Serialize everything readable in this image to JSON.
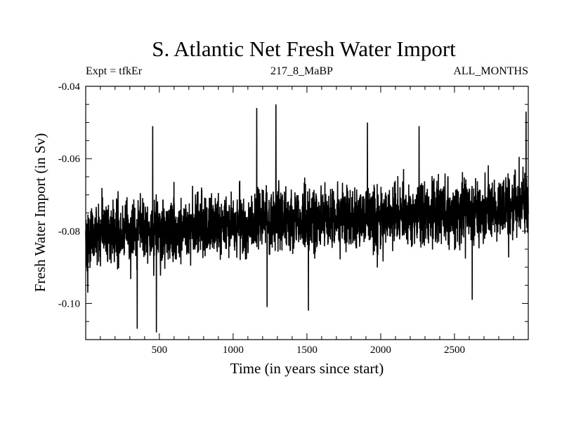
{
  "chart_data": {
    "type": "line",
    "title": "S. Atlantic Net Fresh Water Import",
    "subtitle_left": "Expt = tfkEr",
    "subtitle_center": "217_8_MaBP",
    "subtitle_right": "ALL_MONTHS",
    "xlabel": "Time (in years since start)",
    "ylabel": "Fresh Water Import (in Sv)",
    "xlim": [
      1,
      3000
    ],
    "ylim": [
      -0.11,
      -0.04
    ],
    "xticks": [
      500,
      1000,
      1500,
      2000,
      2500
    ],
    "yticks": [
      -0.1,
      -0.08,
      -0.06,
      -0.04
    ],
    "ytick_labels": [
      "-0.10",
      "-0.08",
      "-0.06",
      "-0.04"
    ],
    "grid": false,
    "series": [
      {
        "color": "#000000",
        "description": "annual values",
        "n_points": 3000,
        "trend_mean": {
          "x": [
            1,
            1000,
            2000,
            3000
          ],
          "y": [
            -0.081,
            -0.078,
            -0.076,
            -0.073
          ]
        },
        "typical_std": 0.0075,
        "extremes": [
          {
            "x": 15,
            "y": -0.097
          },
          {
            "x": 350,
            "y": -0.107
          },
          {
            "x": 480,
            "y": -0.108
          },
          {
            "x": 455,
            "y": -0.051
          },
          {
            "x": 1160,
            "y": -0.046
          },
          {
            "x": 1290,
            "y": -0.045
          },
          {
            "x": 1230,
            "y": -0.101
          },
          {
            "x": 1510,
            "y": -0.102
          },
          {
            "x": 1910,
            "y": -0.05
          },
          {
            "x": 2260,
            "y": -0.051
          },
          {
            "x": 2620,
            "y": -0.099
          },
          {
            "x": 2985,
            "y": -0.047
          }
        ]
      }
    ]
  }
}
